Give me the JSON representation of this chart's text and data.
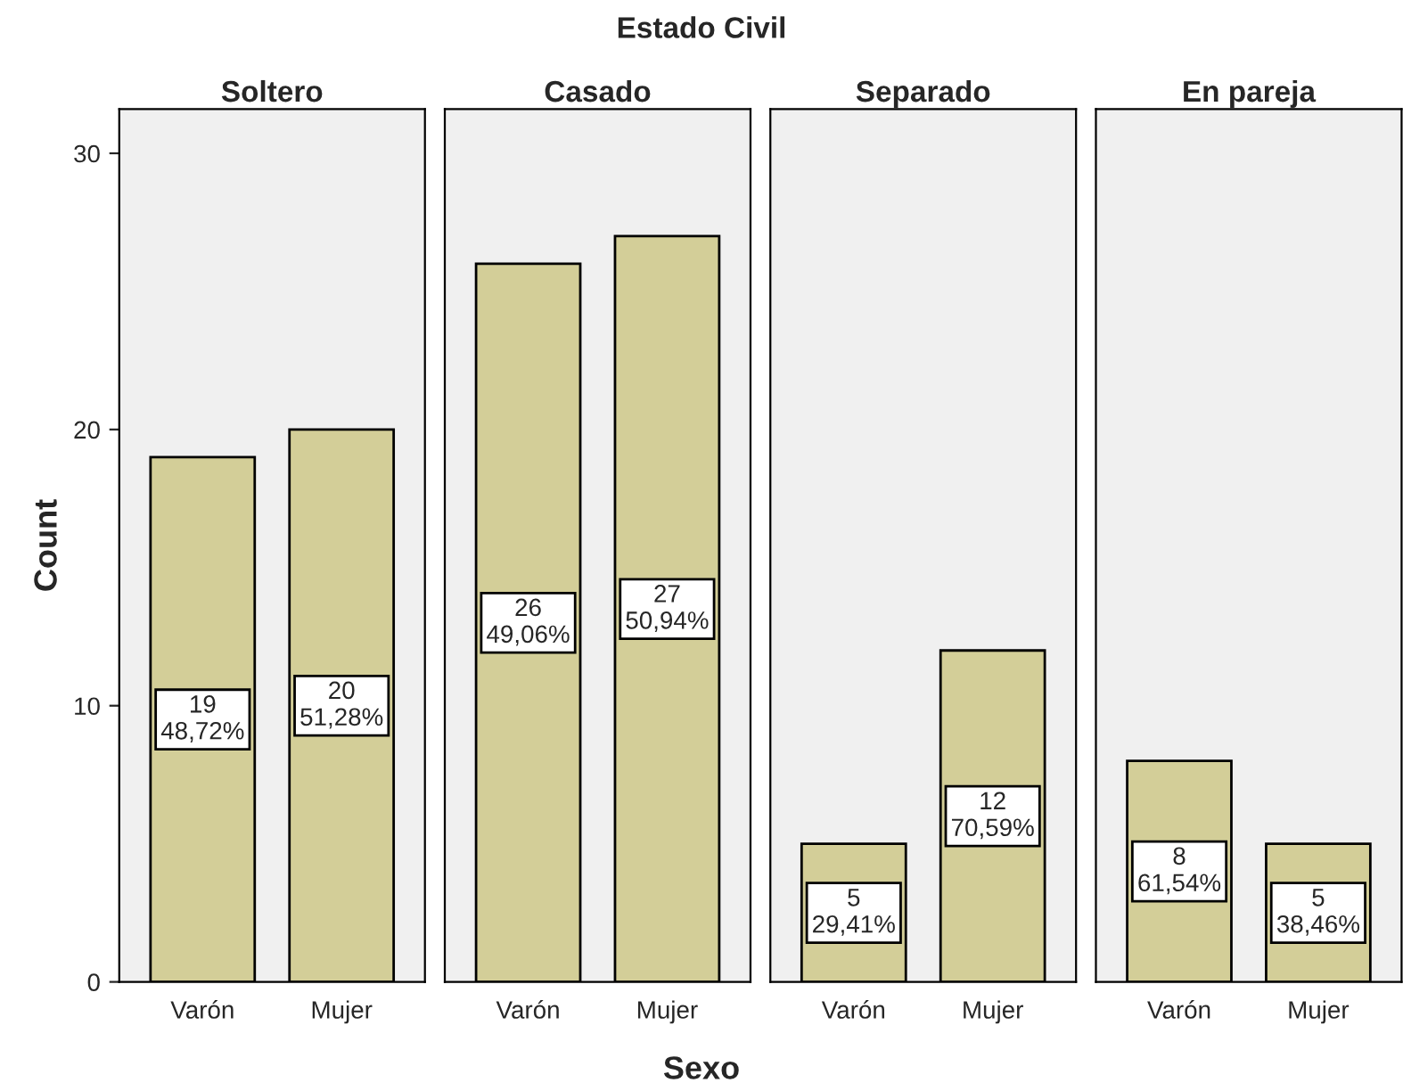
{
  "chart_data": [
    {
      "type": "bar",
      "title": "Soltero",
      "annotations": [
        "Estado Civil",
        "Sexo"
      ],
      "ylabel": "Count",
      "categories": [
        "Varón",
        "Mujer"
      ],
      "values": [
        19,
        20
      ],
      "value_labels": [
        "19\n48,72%",
        "20\n51,28%"
      ],
      "color": "#d3ce98",
      "ylim": [
        0,
        31.6
      ],
      "yticks": [
        0,
        10,
        20,
        30
      ]
    },
    {
      "type": "bar",
      "title": "Casado",
      "categories": [
        "Varón",
        "Mujer"
      ],
      "values": [
        26,
        27
      ],
      "value_labels": [
        "26\n49,06%",
        "27\n50,94%"
      ],
      "color": "#d3ce98",
      "ylim": [
        0,
        31.6
      ],
      "yticks": [
        0,
        10,
        20,
        30
      ],
      "tick_labels": "x"
    },
    {
      "type": "bar",
      "title": "Separado",
      "categories": [
        "Varón",
        "Mujer"
      ],
      "values": [
        5,
        12
      ],
      "value_labels": [
        "5\n29,41%",
        "12\n70,59%"
      ],
      "color": "#d3ce98",
      "ylim": [
        0,
        31.6
      ],
      "yticks": [
        0,
        10,
        20,
        30
      ],
      "tick_labels": "x"
    },
    {
      "type": "bar",
      "title": "En pareja",
      "categories": [
        "Varón",
        "Mujer"
      ],
      "values": [
        8,
        5
      ],
      "value_labels": [
        "8\n61,54%",
        "5\n38,46%"
      ],
      "color": "#d3ce98",
      "ylim": [
        0,
        31.6
      ],
      "yticks": [
        0,
        10,
        20,
        30
      ],
      "tick_labels": "x"
    }
  ]
}
